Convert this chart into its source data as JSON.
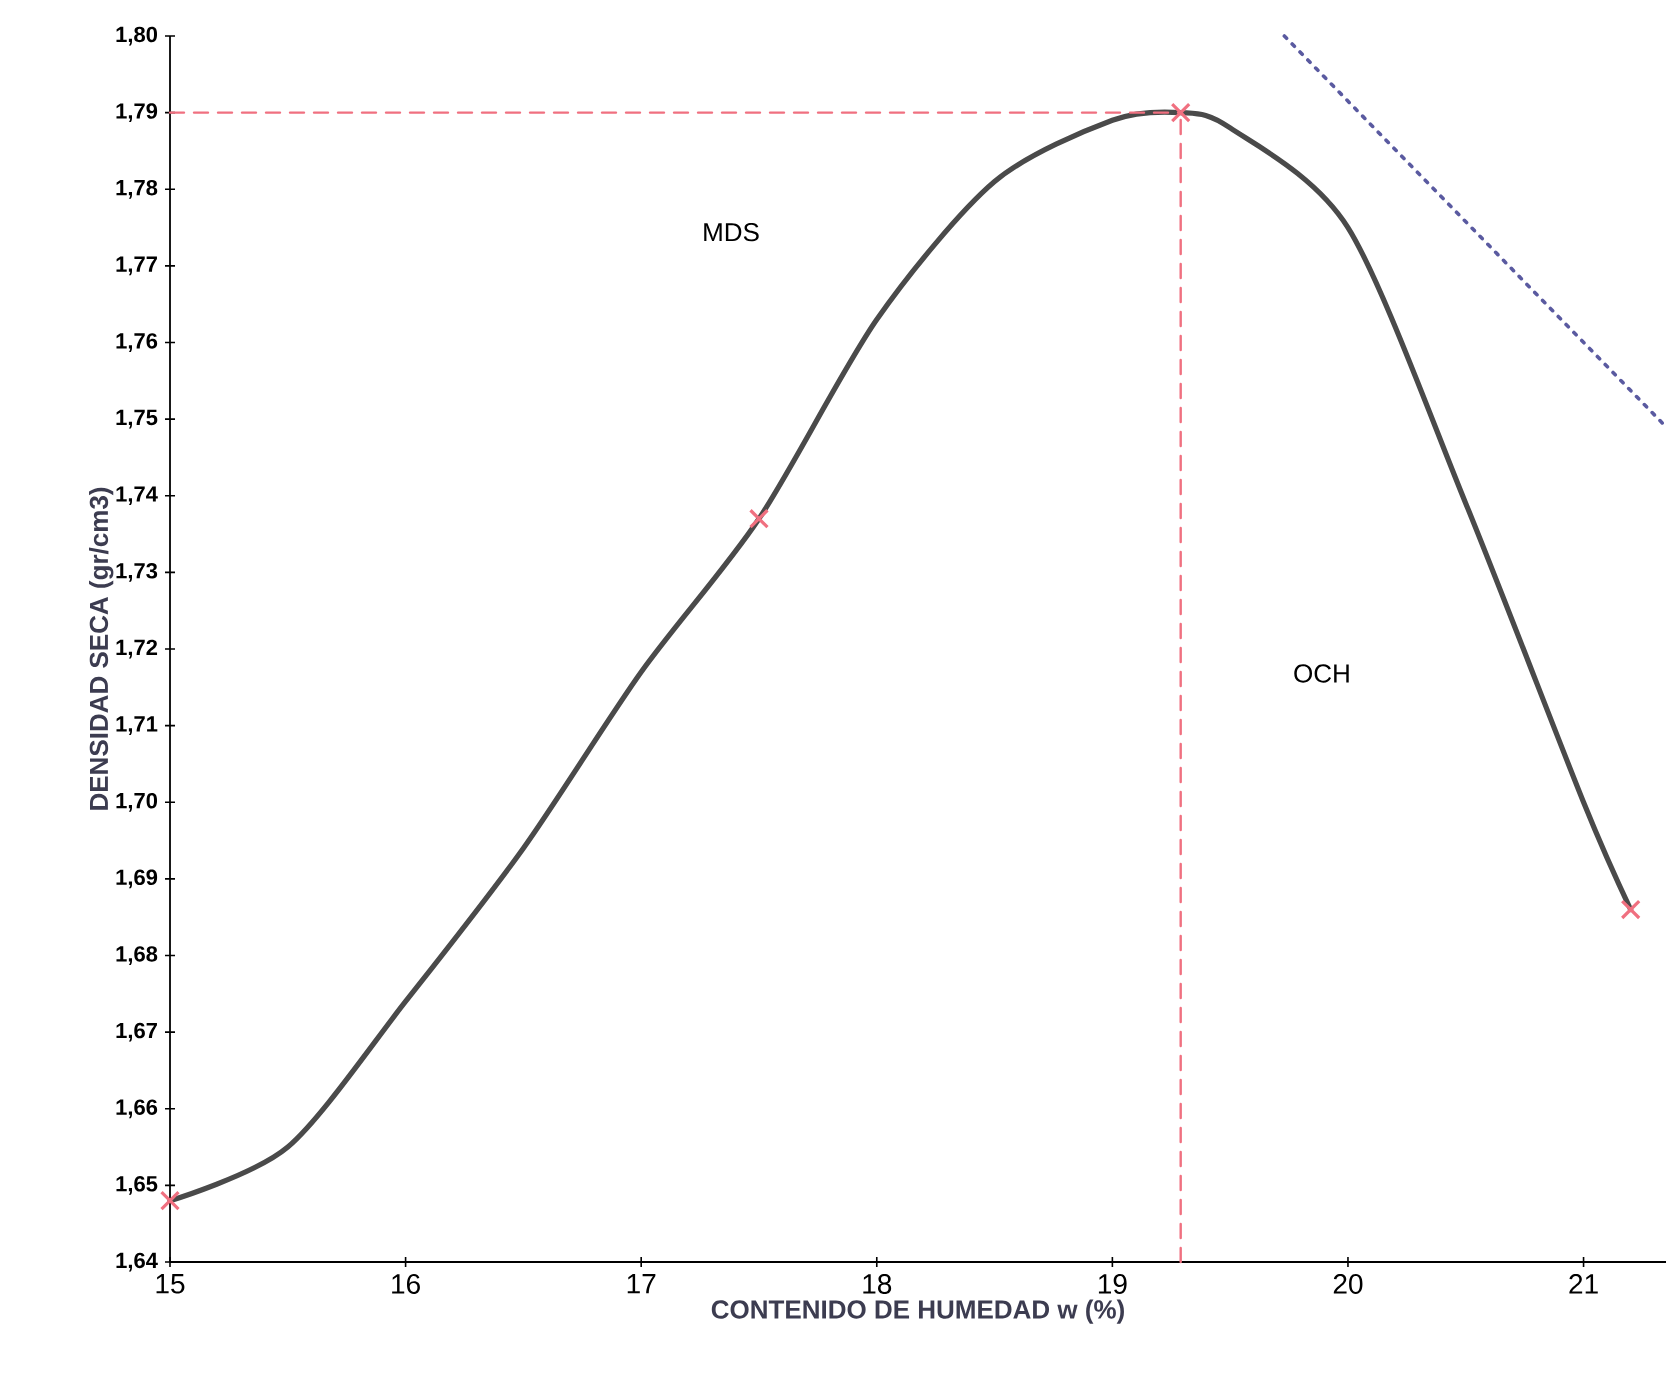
{
  "chart_data": {
    "type": "line",
    "xlabel": "CONTENIDO DE HUMEDAD w (%)",
    "ylabel": "DENSIDAD SECA (gr/cm3)",
    "xlim": [
      15,
      21.35
    ],
    "ylim": [
      1.64,
      1.8
    ],
    "xticks": [
      15,
      16,
      17,
      18,
      19,
      20,
      21
    ],
    "yticks": [
      {
        "value": 1.64,
        "label": "1,64"
      },
      {
        "value": 1.65,
        "label": "1,65"
      },
      {
        "value": 1.66,
        "label": "1,66"
      },
      {
        "value": 1.67,
        "label": "1,67"
      },
      {
        "value": 1.68,
        "label": "1,68"
      },
      {
        "value": 1.69,
        "label": "1,69"
      },
      {
        "value": 1.7,
        "label": "1,70"
      },
      {
        "value": 1.71,
        "label": "1,71"
      },
      {
        "value": 1.72,
        "label": "1,72"
      },
      {
        "value": 1.73,
        "label": "1,73"
      },
      {
        "value": 1.74,
        "label": "1,74"
      },
      {
        "value": 1.75,
        "label": "1,75"
      },
      {
        "value": 1.76,
        "label": "1,76"
      },
      {
        "value": 1.77,
        "label": "1,77"
      },
      {
        "value": 1.78,
        "label": "1,78"
      },
      {
        "value": 1.79,
        "label": "1,79"
      },
      {
        "value": 1.8,
        "label": "1,80"
      }
    ],
    "grid": false,
    "series": [
      {
        "color": "#4a4a4a",
        "marker": "none",
        "line_style": "solid",
        "x": [
          15,
          15.5,
          16,
          16.5,
          17,
          17.5,
          18,
          18.5,
          19,
          19.29,
          19.5,
          20,
          20.5,
          21,
          21.2
        ],
        "values": [
          1.648,
          1.655,
          1.674,
          1.694,
          1.717,
          1.737,
          1.763,
          1.781,
          1.789,
          1.79,
          1.788,
          1.775,
          1.739,
          1.7,
          1.686
        ]
      },
      {
        "type": "scatter",
        "color": "#f07080",
        "marker": "cross",
        "x": [
          15,
          17.5,
          19.29,
          21.2
        ],
        "values": [
          1.648,
          1.737,
          1.79,
          1.686
        ]
      },
      {
        "type": "line",
        "color": "#f07080",
        "marker": "none",
        "line_style": "dashed",
        "x": [
          15,
          19.29
        ],
        "values": [
          1.79,
          1.79
        ]
      },
      {
        "type": "line",
        "color": "#f07080",
        "marker": "none",
        "line_style": "dashed",
        "x": [
          19.29,
          19.29
        ],
        "values": [
          1.64,
          1.79
        ]
      },
      {
        "type": "line",
        "color": "#5a5aa0",
        "marker": "none",
        "line_style": "dotted",
        "x": [
          19.73,
          21.35
        ],
        "values": [
          1.8,
          1.749
        ]
      }
    ],
    "annotations": [
      "MDS",
      "OCH"
    ]
  }
}
